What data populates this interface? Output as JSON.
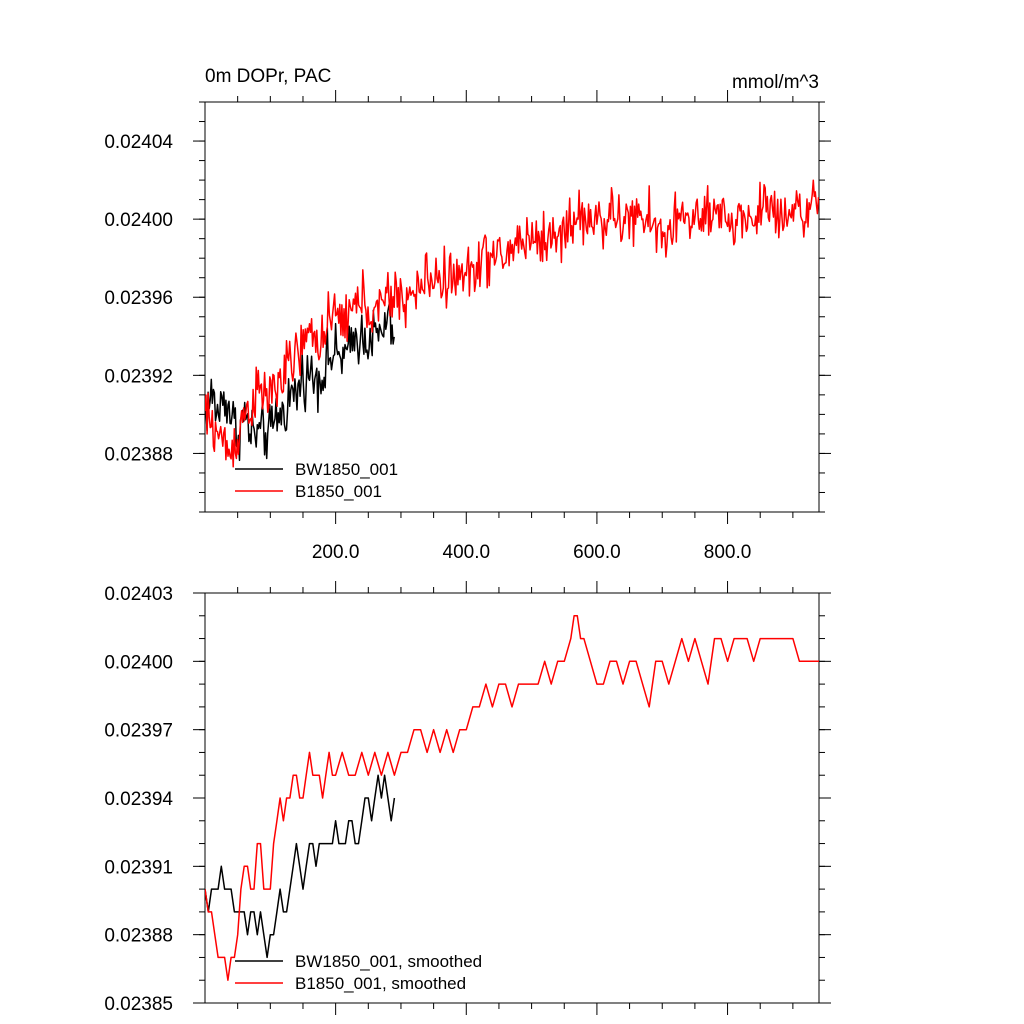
{
  "chart_data": [
    {
      "type": "line",
      "title": "0m DOPr, PAC",
      "units": "mmol/m^3",
      "xlabel": "",
      "ylabel": "",
      "xlim": [
        0,
        940
      ],
      "ylim": [
        0.02385,
        0.02406
      ],
      "x_ticks": [
        200,
        400,
        600,
        800
      ],
      "x_tick_labels": [
        "200.0",
        "400.0",
        "600.0",
        "800.0"
      ],
      "y_ticks": [
        0.02388,
        0.02392,
        0.02396,
        0.024,
        0.02404
      ],
      "y_tick_labels": [
        "0.02388",
        "0.02392",
        "0.02396",
        "0.02400",
        "0.02404"
      ],
      "legend": {
        "location": "bottom-left",
        "entries": [
          "BW1850_001",
          "B1850_001"
        ]
      },
      "series": [
        {
          "name": "BW1850_001",
          "color": "#000000",
          "noise": 1.4e-05,
          "x": [
            0,
            10,
            20,
            30,
            40,
            50,
            60,
            70,
            80,
            90,
            100,
            110,
            120,
            130,
            140,
            150,
            160,
            170,
            180,
            190,
            200,
            210,
            220,
            230,
            240,
            250,
            260,
            270,
            280,
            290
          ],
          "values": [
            0.0239,
            0.02391,
            0.0239,
            0.02391,
            0.0239,
            0.02389,
            0.0239,
            0.02389,
            0.02389,
            0.02389,
            0.02389,
            0.0239,
            0.0239,
            0.02391,
            0.02391,
            0.02392,
            0.02392,
            0.02392,
            0.02392,
            0.02393,
            0.02393,
            0.02393,
            0.02393,
            0.02394,
            0.02394,
            0.02394,
            0.02394,
            0.02394,
            0.02395,
            0.02394
          ]
        },
        {
          "name": "B1850_001",
          "color": "#ff0000",
          "noise": 1.4e-05,
          "x": [
            0,
            20,
            40,
            60,
            80,
            100,
            120,
            140,
            160,
            180,
            200,
            220,
            240,
            260,
            280,
            300,
            320,
            340,
            360,
            380,
            400,
            420,
            440,
            460,
            480,
            500,
            520,
            540,
            560,
            580,
            600,
            620,
            640,
            660,
            680,
            700,
            720,
            740,
            760,
            780,
            800,
            820,
            840,
            860,
            880,
            900,
            920,
            940
          ],
          "values": [
            0.0239,
            0.02389,
            0.02388,
            0.0239,
            0.02391,
            0.02391,
            0.02392,
            0.02393,
            0.02394,
            0.02394,
            0.02395,
            0.02395,
            0.02396,
            0.02395,
            0.02396,
            0.02396,
            0.02396,
            0.02397,
            0.02397,
            0.02397,
            0.02397,
            0.02398,
            0.02398,
            0.02398,
            0.02399,
            0.02399,
            0.02399,
            0.02399,
            0.024,
            0.024,
            0.024,
            0.024,
            0.024,
            0.024,
            0.024,
            0.02399,
            0.024,
            0.024,
            0.024,
            0.024,
            0.024,
            0.024,
            0.024,
            0.02401,
            0.024,
            0.02401,
            0.024,
            0.02401
          ]
        }
      ]
    },
    {
      "type": "line",
      "title": "",
      "xlabel": "",
      "ylabel": "",
      "xlim": [
        0,
        940
      ],
      "ylim": [
        0.02385,
        0.02403
      ],
      "x_ticks": [
        200,
        400,
        600,
        800
      ],
      "y_ticks": [
        0.02385,
        0.02388,
        0.02391,
        0.02394,
        0.02397,
        0.024,
        0.02403
      ],
      "y_tick_labels": [
        "0.02385",
        "0.02388",
        "0.02391",
        "0.02394",
        "0.02397",
        "0.02400",
        "0.02403"
      ],
      "legend": {
        "location": "bottom-left",
        "entries": [
          "BW1850_001, smoothed",
          "B1850_001, smoothed"
        ]
      },
      "series": [
        {
          "name": "BW1850_001, smoothed",
          "color": "#000000",
          "x": [
            0,
            5,
            10,
            15,
            20,
            25,
            30,
            35,
            40,
            45,
            50,
            55,
            60,
            65,
            70,
            75,
            80,
            85,
            90,
            95,
            100,
            105,
            110,
            115,
            120,
            125,
            130,
            135,
            140,
            145,
            150,
            155,
            160,
            165,
            170,
            175,
            180,
            185,
            190,
            195,
            200,
            205,
            210,
            215,
            220,
            225,
            230,
            235,
            240,
            245,
            250,
            255,
            260,
            265,
            270,
            275,
            280,
            285,
            290
          ],
          "values": [
            0.0239,
            0.02389,
            0.0239,
            0.0239,
            0.0239,
            0.02391,
            0.0239,
            0.0239,
            0.0239,
            0.02389,
            0.02389,
            0.02389,
            0.02389,
            0.02388,
            0.02389,
            0.02389,
            0.02388,
            0.02389,
            0.02388,
            0.02387,
            0.02388,
            0.02388,
            0.02389,
            0.0239,
            0.02389,
            0.02389,
            0.0239,
            0.02391,
            0.02392,
            0.02391,
            0.0239,
            0.02391,
            0.02392,
            0.02392,
            0.02391,
            0.02392,
            0.02392,
            0.02392,
            0.02392,
            0.02392,
            0.02393,
            0.02392,
            0.02392,
            0.02392,
            0.02393,
            0.02393,
            0.02392,
            0.02392,
            0.02393,
            0.02394,
            0.02394,
            0.02393,
            0.02394,
            0.02395,
            0.02394,
            0.02395,
            0.02394,
            0.02393,
            0.02394
          ]
        },
        {
          "name": "B1850_001, smoothed",
          "color": "#ff0000",
          "x": [
            0,
            5,
            10,
            15,
            20,
            25,
            30,
            35,
            40,
            45,
            50,
            55,
            60,
            65,
            70,
            75,
            80,
            85,
            90,
            95,
            100,
            105,
            110,
            115,
            120,
            125,
            130,
            135,
            140,
            145,
            150,
            155,
            160,
            165,
            170,
            175,
            180,
            185,
            190,
            195,
            200,
            210,
            220,
            230,
            240,
            250,
            260,
            270,
            280,
            290,
            300,
            310,
            320,
            330,
            340,
            350,
            360,
            370,
            380,
            390,
            400,
            410,
            420,
            430,
            440,
            450,
            460,
            470,
            480,
            490,
            500,
            510,
            520,
            530,
            540,
            550,
            560,
            565,
            570,
            575,
            580,
            590,
            600,
            610,
            620,
            630,
            640,
            650,
            660,
            670,
            680,
            690,
            700,
            710,
            720,
            730,
            740,
            750,
            760,
            770,
            780,
            790,
            800,
            810,
            820,
            830,
            840,
            850,
            860,
            870,
            880,
            890,
            900,
            910,
            920,
            930,
            940
          ],
          "values": [
            0.0239,
            0.02389,
            0.02389,
            0.02388,
            0.02387,
            0.02387,
            0.02387,
            0.02386,
            0.02387,
            0.02387,
            0.02388,
            0.0239,
            0.02391,
            0.02391,
            0.0239,
            0.0239,
            0.02392,
            0.02392,
            0.0239,
            0.0239,
            0.0239,
            0.02392,
            0.02393,
            0.02394,
            0.02393,
            0.02394,
            0.02394,
            0.02395,
            0.02395,
            0.02394,
            0.02394,
            0.02395,
            0.02396,
            0.02395,
            0.02395,
            0.02395,
            0.02394,
            0.02395,
            0.02396,
            0.02395,
            0.02395,
            0.02396,
            0.02395,
            0.02395,
            0.02396,
            0.02395,
            0.02396,
            0.02395,
            0.02396,
            0.02395,
            0.02396,
            0.02396,
            0.02397,
            0.02397,
            0.02396,
            0.02397,
            0.02396,
            0.02397,
            0.02396,
            0.02397,
            0.02397,
            0.02398,
            0.02398,
            0.02399,
            0.02398,
            0.02399,
            0.02399,
            0.02398,
            0.02399,
            0.02399,
            0.02399,
            0.02399,
            0.024,
            0.02399,
            0.024,
            0.024,
            0.02401,
            0.02402,
            0.02402,
            0.02401,
            0.02401,
            0.024,
            0.02399,
            0.02399,
            0.024,
            0.024,
            0.02399,
            0.024,
            0.024,
            0.02399,
            0.02398,
            0.024,
            0.024,
            0.02399,
            0.024,
            0.02401,
            0.024,
            0.02401,
            0.024,
            0.02399,
            0.02401,
            0.02401,
            0.024,
            0.02401,
            0.02401,
            0.02401,
            0.024,
            0.02401,
            0.02401,
            0.02401,
            0.02401,
            0.02401,
            0.02401,
            0.024,
            0.024,
            0.024,
            0.024
          ]
        }
      ]
    }
  ]
}
